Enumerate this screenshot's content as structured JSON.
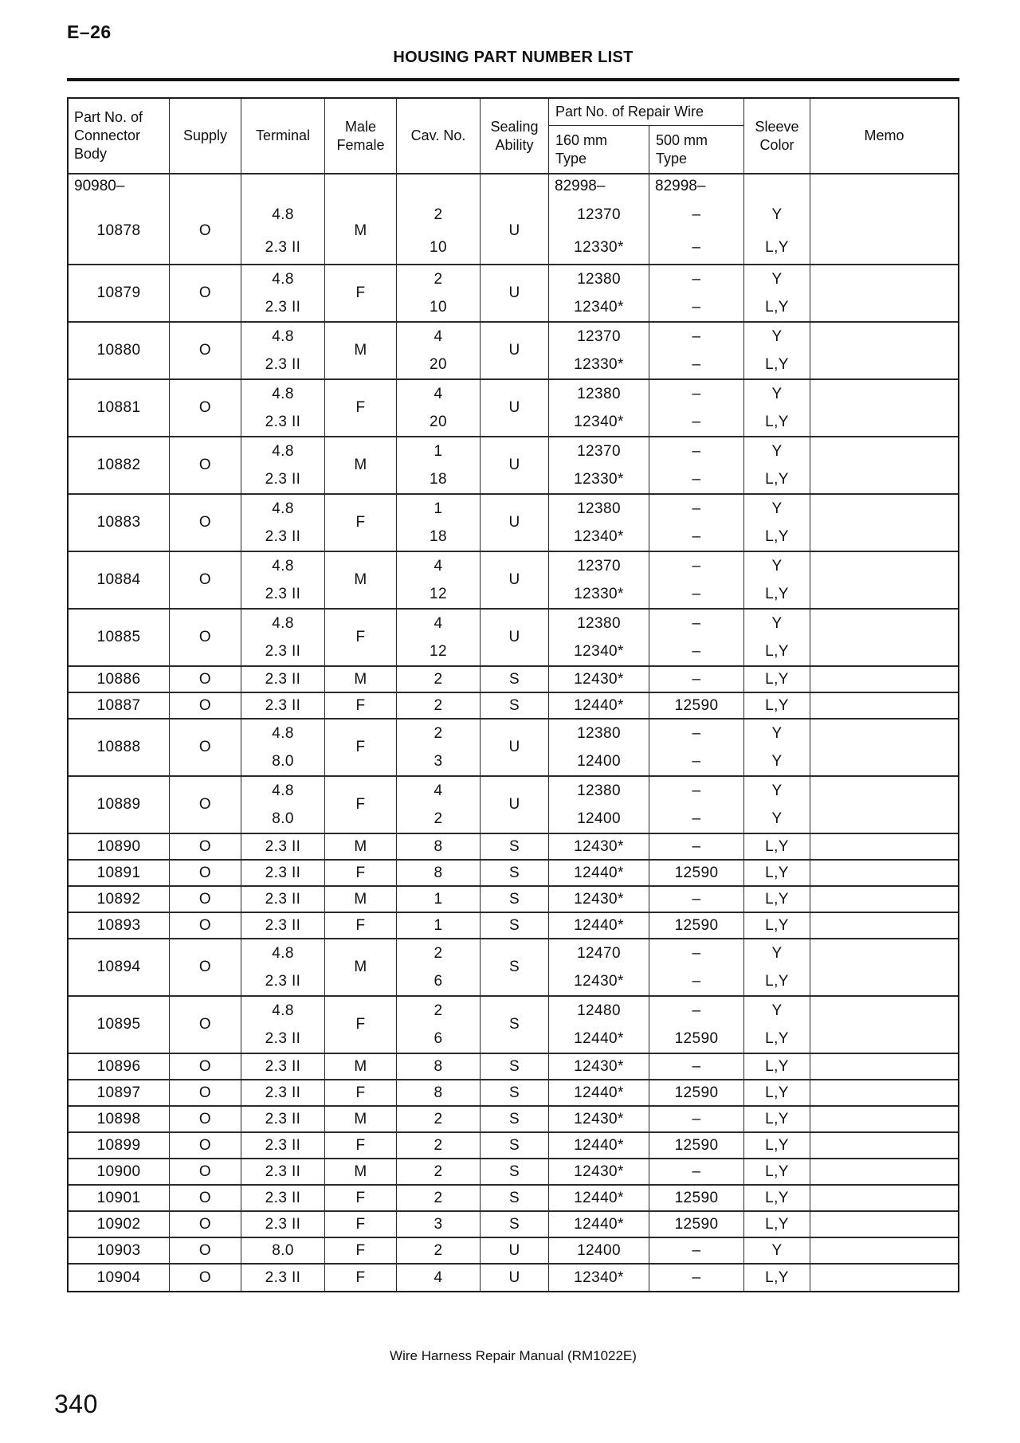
{
  "page": {
    "section_code": "E–26",
    "title": "HOUSING PART NUMBER LIST",
    "footer": "Wire Harness Repair Manual (RM1022E)",
    "page_number": "340"
  },
  "table": {
    "headers": {
      "part_no_lines": [
        "Part No. of",
        "Connector",
        "Body"
      ],
      "supply": "Supply",
      "terminal": "Terminal",
      "male_female_lines": [
        "Male",
        "Female"
      ],
      "cav_no": "Cav. No.",
      "sealing_lines": [
        "Sealing",
        "Ability"
      ],
      "repair_wire_group": "Part No. of Repair Wire",
      "type_160_lines": [
        "160 mm",
        "Type"
      ],
      "type_500_lines": [
        "500 mm",
        "Type"
      ],
      "sleeve_lines": [
        "Sleeve",
        "Color"
      ],
      "memo": "Memo"
    },
    "rows": [
      {
        "part": "10878",
        "supply": "O",
        "terminal": [
          "4.8",
          "2.3 II"
        ],
        "mf": "M",
        "cav": [
          "2",
          "10"
        ],
        "sealing": "U",
        "w160": [
          "12370",
          "12330*"
        ],
        "w500": [
          "–",
          "–"
        ],
        "sleeve": [
          "Y",
          "L,Y"
        ],
        "memo": "",
        "prefixes": {
          "part": "90980–",
          "w160": "82998–",
          "w500": "82998–"
        }
      },
      {
        "part": "10879",
        "supply": "O",
        "terminal": [
          "4.8",
          "2.3 II"
        ],
        "mf": "F",
        "cav": [
          "2",
          "10"
        ],
        "sealing": "U",
        "w160": [
          "12380",
          "12340*"
        ],
        "w500": [
          "–",
          "–"
        ],
        "sleeve": [
          "Y",
          "L,Y"
        ],
        "memo": ""
      },
      {
        "part": "10880",
        "supply": "O",
        "terminal": [
          "4.8",
          "2.3 II"
        ],
        "mf": "M",
        "cav": [
          "4",
          "20"
        ],
        "sealing": "U",
        "w160": [
          "12370",
          "12330*"
        ],
        "w500": [
          "–",
          "–"
        ],
        "sleeve": [
          "Y",
          "L,Y"
        ],
        "memo": ""
      },
      {
        "part": "10881",
        "supply": "O",
        "terminal": [
          "4.8",
          "2.3 II"
        ],
        "mf": "F",
        "cav": [
          "4",
          "20"
        ],
        "sealing": "U",
        "w160": [
          "12380",
          "12340*"
        ],
        "w500": [
          "–",
          "–"
        ],
        "sleeve": [
          "Y",
          "L,Y"
        ],
        "memo": ""
      },
      {
        "part": "10882",
        "supply": "O",
        "terminal": [
          "4.8",
          "2.3 II"
        ],
        "mf": "M",
        "cav": [
          "1",
          "18"
        ],
        "sealing": "U",
        "w160": [
          "12370",
          "12330*"
        ],
        "w500": [
          "–",
          "–"
        ],
        "sleeve": [
          "Y",
          "L,Y"
        ],
        "memo": ""
      },
      {
        "part": "10883",
        "supply": "O",
        "terminal": [
          "4.8",
          "2.3 II"
        ],
        "mf": "F",
        "cav": [
          "1",
          "18"
        ],
        "sealing": "U",
        "w160": [
          "12380",
          "12340*"
        ],
        "w500": [
          "–",
          "–"
        ],
        "sleeve": [
          "Y",
          "L,Y"
        ],
        "memo": ""
      },
      {
        "part": "10884",
        "supply": "O",
        "terminal": [
          "4.8",
          "2.3 II"
        ],
        "mf": "M",
        "cav": [
          "4",
          "12"
        ],
        "sealing": "U",
        "w160": [
          "12370",
          "12330*"
        ],
        "w500": [
          "–",
          "–"
        ],
        "sleeve": [
          "Y",
          "L,Y"
        ],
        "memo": ""
      },
      {
        "part": "10885",
        "supply": "O",
        "terminal": [
          "4.8",
          "2.3 II"
        ],
        "mf": "F",
        "cav": [
          "4",
          "12"
        ],
        "sealing": "U",
        "w160": [
          "12380",
          "12340*"
        ],
        "w500": [
          "–",
          "–"
        ],
        "sleeve": [
          "Y",
          "L,Y"
        ],
        "memo": ""
      },
      {
        "part": "10886",
        "supply": "O",
        "terminal": "2.3 II",
        "mf": "M",
        "cav": "2",
        "sealing": "S",
        "w160": "12430*",
        "w500": "–",
        "sleeve": "L,Y",
        "memo": ""
      },
      {
        "part": "10887",
        "supply": "O",
        "terminal": "2.3 II",
        "mf": "F",
        "cav": "2",
        "sealing": "S",
        "w160": "12440*",
        "w500": "12590",
        "sleeve": "L,Y",
        "memo": ""
      },
      {
        "part": "10888",
        "supply": "O",
        "terminal": [
          "4.8",
          "8.0"
        ],
        "mf": "F",
        "cav": [
          "2",
          "3"
        ],
        "sealing": "U",
        "w160": [
          "12380",
          "12400"
        ],
        "w500": [
          "–",
          "–"
        ],
        "sleeve": [
          "Y",
          "Y"
        ],
        "memo": ""
      },
      {
        "part": "10889",
        "supply": "O",
        "terminal": [
          "4.8",
          "8.0"
        ],
        "mf": "F",
        "cav": [
          "4",
          "2"
        ],
        "sealing": "U",
        "w160": [
          "12380",
          "12400"
        ],
        "w500": [
          "–",
          "–"
        ],
        "sleeve": [
          "Y",
          "Y"
        ],
        "memo": ""
      },
      {
        "part": "10890",
        "supply": "O",
        "terminal": "2.3 II",
        "mf": "M",
        "cav": "8",
        "sealing": "S",
        "w160": "12430*",
        "w500": "–",
        "sleeve": "L,Y",
        "memo": ""
      },
      {
        "part": "10891",
        "supply": "O",
        "terminal": "2.3 II",
        "mf": "F",
        "cav": "8",
        "sealing": "S",
        "w160": "12440*",
        "w500": "12590",
        "sleeve": "L,Y",
        "memo": ""
      },
      {
        "part": "10892",
        "supply": "O",
        "terminal": "2.3 II",
        "mf": "M",
        "cav": "1",
        "sealing": "S",
        "w160": "12430*",
        "w500": "–",
        "sleeve": "L,Y",
        "memo": ""
      },
      {
        "part": "10893",
        "supply": "O",
        "terminal": "2.3 II",
        "mf": "F",
        "cav": "1",
        "sealing": "S",
        "w160": "12440*",
        "w500": "12590",
        "sleeve": "L,Y",
        "memo": ""
      },
      {
        "part": "10894",
        "supply": "O",
        "terminal": [
          "4.8",
          "2.3 II"
        ],
        "mf": "M",
        "cav": [
          "2",
          "6"
        ],
        "sealing": "S",
        "w160": [
          "12470",
          "12430*"
        ],
        "w500": [
          "–",
          "–"
        ],
        "sleeve": [
          "Y",
          "L,Y"
        ],
        "memo": ""
      },
      {
        "part": "10895",
        "supply": "O",
        "terminal": [
          "4.8",
          "2.3 II"
        ],
        "mf": "F",
        "cav": [
          "2",
          "6"
        ],
        "sealing": "S",
        "w160": [
          "12480",
          "12440*"
        ],
        "w500": [
          "–",
          "12590"
        ],
        "sleeve": [
          "Y",
          "L,Y"
        ],
        "memo": ""
      },
      {
        "part": "10896",
        "supply": "O",
        "terminal": "2.3 II",
        "mf": "M",
        "cav": "8",
        "sealing": "S",
        "w160": "12430*",
        "w500": "–",
        "sleeve": "L,Y",
        "memo": ""
      },
      {
        "part": "10897",
        "supply": "O",
        "terminal": "2.3 II",
        "mf": "F",
        "cav": "8",
        "sealing": "S",
        "w160": "12440*",
        "w500": "12590",
        "sleeve": "L,Y",
        "memo": ""
      },
      {
        "part": "10898",
        "supply": "O",
        "terminal": "2.3 II",
        "mf": "M",
        "cav": "2",
        "sealing": "S",
        "w160": "12430*",
        "w500": "–",
        "sleeve": "L,Y",
        "memo": ""
      },
      {
        "part": "10899",
        "supply": "O",
        "terminal": "2.3 II",
        "mf": "F",
        "cav": "2",
        "sealing": "S",
        "w160": "12440*",
        "w500": "12590",
        "sleeve": "L,Y",
        "memo": ""
      },
      {
        "part": "10900",
        "supply": "O",
        "terminal": "2.3 II",
        "mf": "M",
        "cav": "2",
        "sealing": "S",
        "w160": "12430*",
        "w500": "–",
        "sleeve": "L,Y",
        "memo": ""
      },
      {
        "part": "10901",
        "supply": "O",
        "terminal": "2.3 II",
        "mf": "F",
        "cav": "2",
        "sealing": "S",
        "w160": "12440*",
        "w500": "12590",
        "sleeve": "L,Y",
        "memo": ""
      },
      {
        "part": "10902",
        "supply": "O",
        "terminal": "2.3 II",
        "mf": "F",
        "cav": "3",
        "sealing": "S",
        "w160": "12440*",
        "w500": "12590",
        "sleeve": "L,Y",
        "memo": ""
      },
      {
        "part": "10903",
        "supply": "O",
        "terminal": "8.0",
        "mf": "F",
        "cav": "2",
        "sealing": "U",
        "w160": "12400",
        "w500": "–",
        "sleeve": "Y",
        "memo": ""
      },
      {
        "part": "10904",
        "supply": "O",
        "terminal": "2.3 II",
        "mf": "F",
        "cav": "4",
        "sealing": "U",
        "w160": "12340*",
        "w500": "–",
        "sleeve": "L,Y",
        "memo": ""
      }
    ]
  }
}
